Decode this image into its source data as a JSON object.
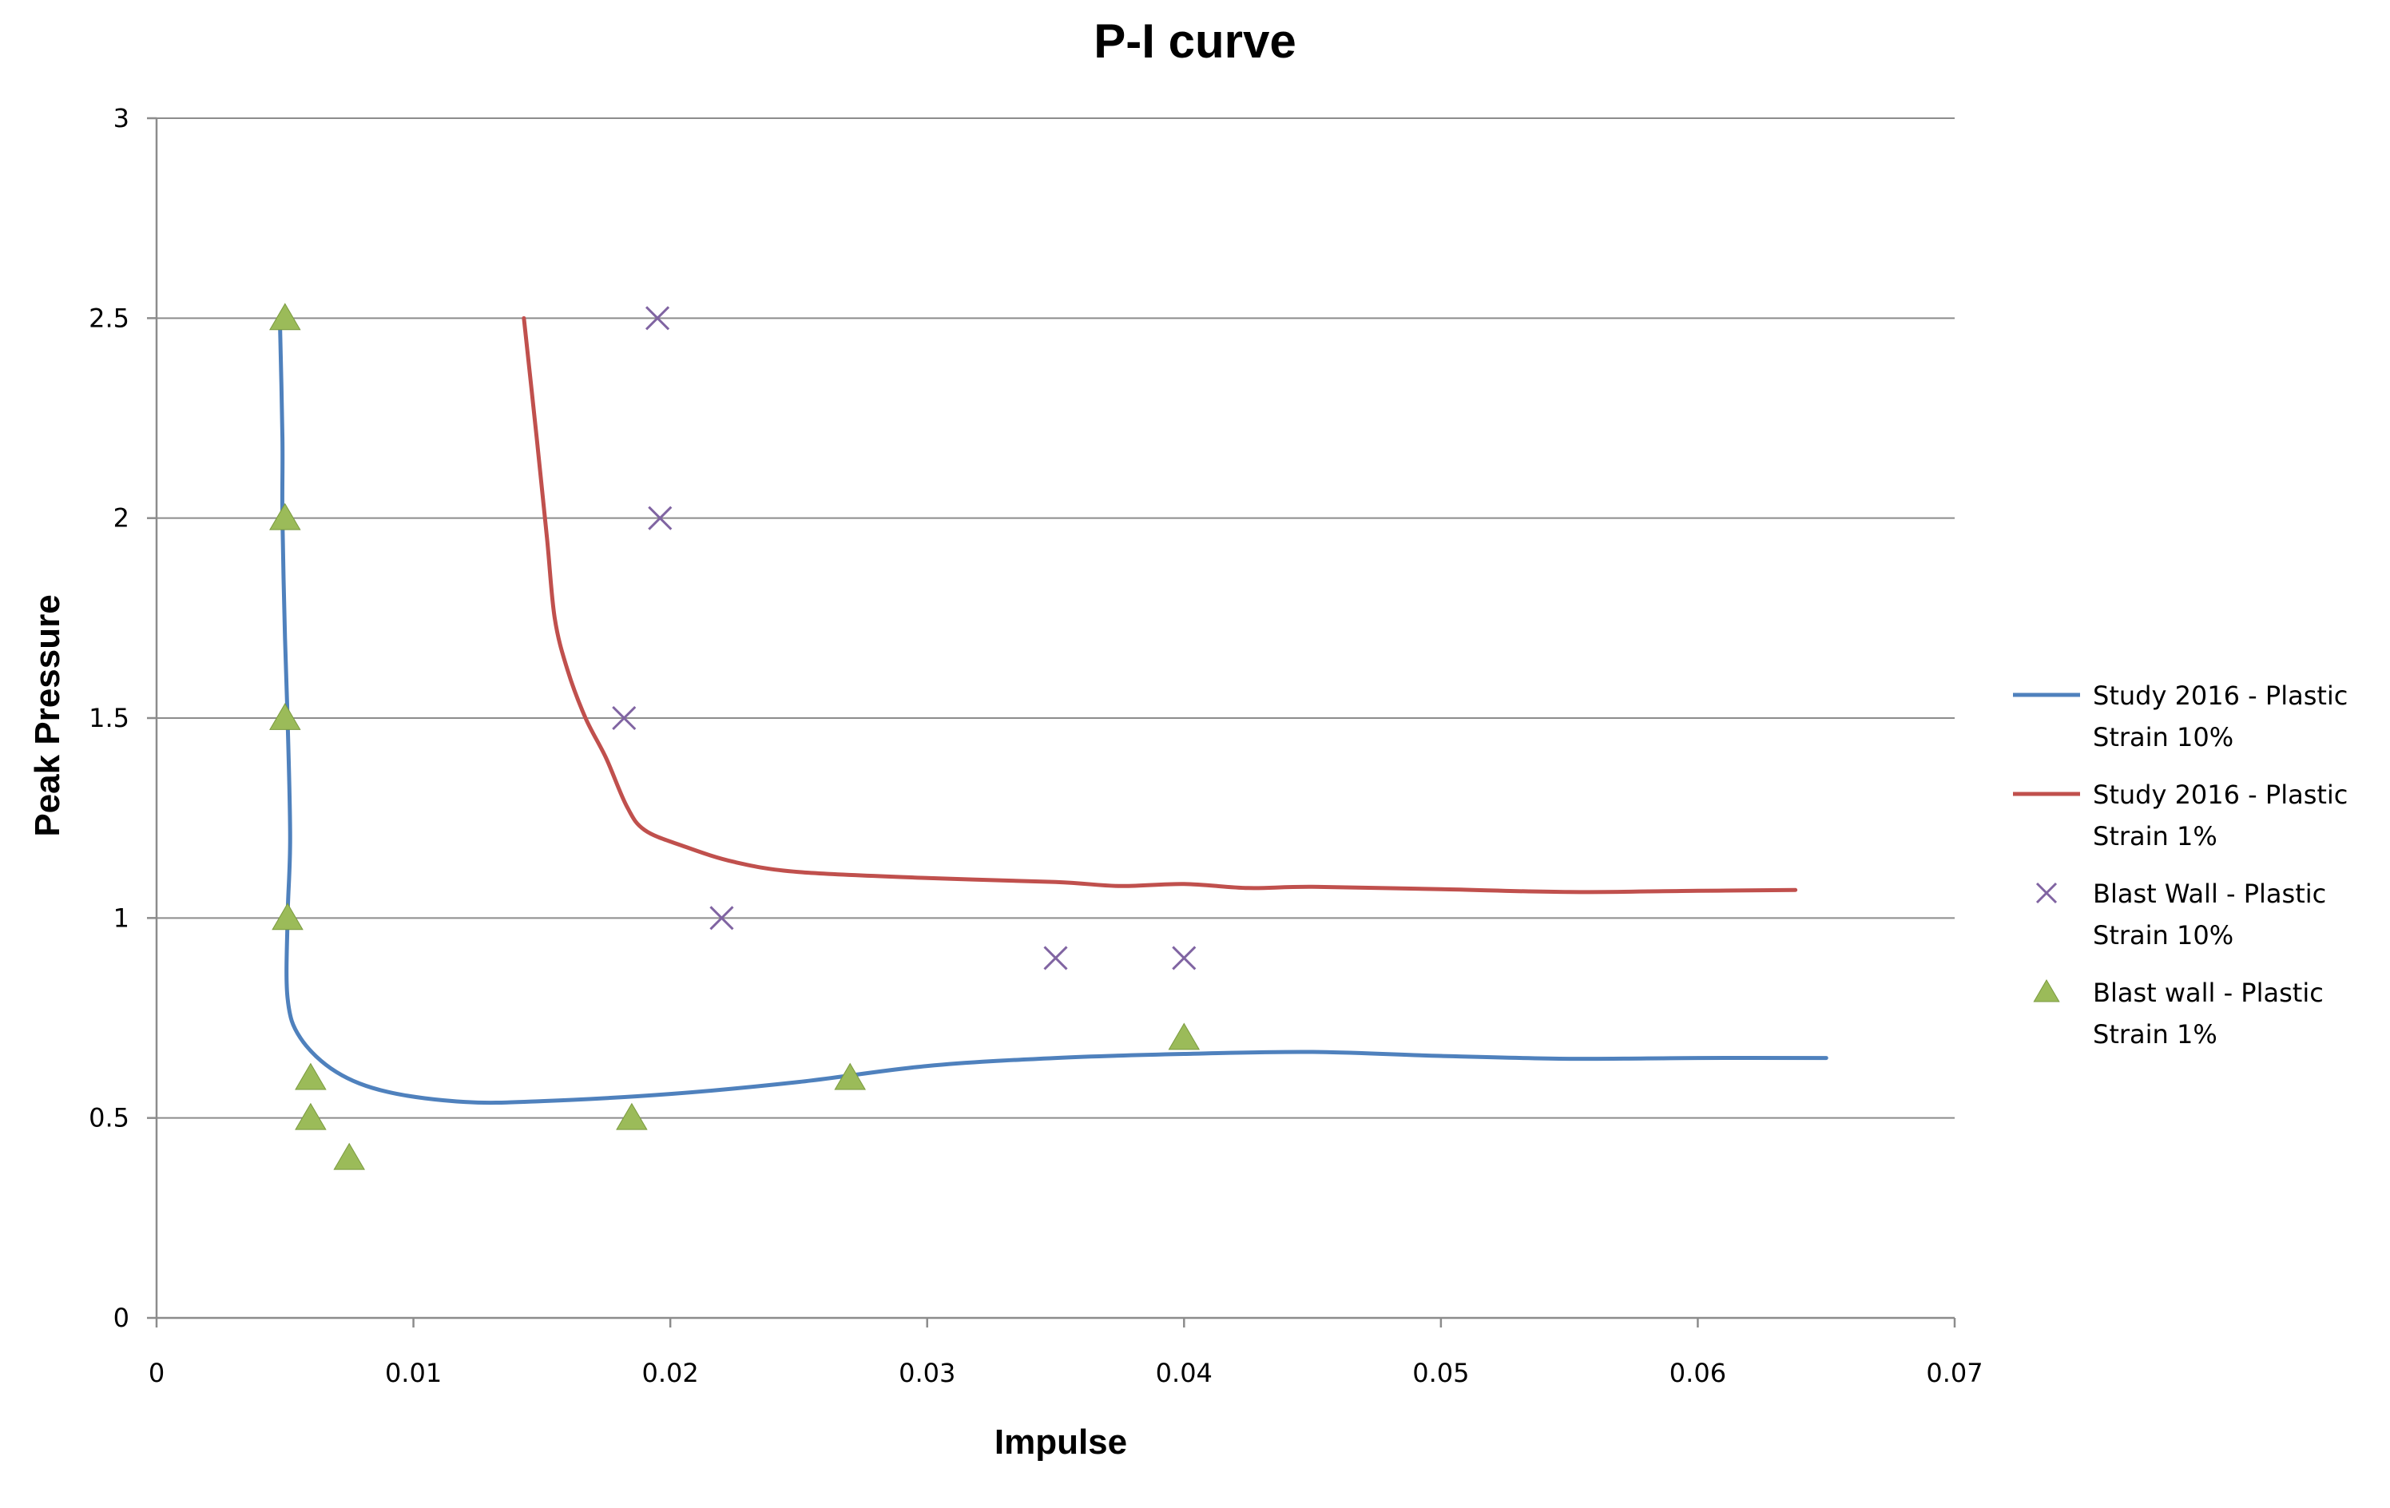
{
  "chart_data": {
    "type": "scatter",
    "title": "P-I curve",
    "xlabel": "Impulse",
    "ylabel": "Peak Pressure",
    "xlim": [
      0,
      0.07
    ],
    "ylim": [
      0,
      3
    ],
    "x_ticks": [
      0,
      0.01,
      0.02,
      0.03,
      0.04,
      0.05,
      0.06,
      0.07
    ],
    "x_tick_labels": [
      "0",
      "0.01",
      "0.02",
      "0.03",
      "0.04",
      "0.05",
      "0.06",
      "0.07"
    ],
    "y_ticks": [
      0,
      0.5,
      1,
      1.5,
      2,
      2.5,
      3
    ],
    "y_tick_labels": [
      "0",
      "0.5",
      "1",
      "1.5",
      "2",
      "2.5",
      "3"
    ],
    "grid": "horizontal",
    "legend_position": "right",
    "series": [
      {
        "name": "Study 2016 - Plastic Strain 10%",
        "legend_lines": [
          "Study 2016 - Plastic",
          "Strain 10%"
        ],
        "kind": "line",
        "color": "#4f81bd",
        "points": [
          [
            0.0048,
            2.5
          ],
          [
            0.0049,
            2.2
          ],
          [
            0.0049,
            2.0
          ],
          [
            0.005,
            1.7
          ],
          [
            0.0051,
            1.5
          ],
          [
            0.0052,
            1.2
          ],
          [
            0.0051,
            1.0
          ],
          [
            0.0051,
            0.8
          ],
          [
            0.0056,
            0.7
          ],
          [
            0.007,
            0.615
          ],
          [
            0.009,
            0.565
          ],
          [
            0.012,
            0.54
          ],
          [
            0.015,
            0.542
          ],
          [
            0.02,
            0.56
          ],
          [
            0.025,
            0.59
          ],
          [
            0.03,
            0.63
          ],
          [
            0.035,
            0.65
          ],
          [
            0.04,
            0.66
          ],
          [
            0.045,
            0.665
          ],
          [
            0.05,
            0.655
          ],
          [
            0.055,
            0.648
          ],
          [
            0.06,
            0.65
          ],
          [
            0.065,
            0.65
          ]
        ]
      },
      {
        "name": "Study 2016 - Plastic Strain 1%",
        "legend_lines": [
          "Study 2016 - Plastic",
          "Strain 1%"
        ],
        "kind": "line",
        "color": "#c0504d",
        "points": [
          [
            0.0143,
            2.5
          ],
          [
            0.0148,
            2.2
          ],
          [
            0.0152,
            1.95
          ],
          [
            0.0155,
            1.75
          ],
          [
            0.016,
            1.62
          ],
          [
            0.0167,
            1.5
          ],
          [
            0.0175,
            1.4
          ],
          [
            0.0183,
            1.28
          ],
          [
            0.019,
            1.22
          ],
          [
            0.0205,
            1.18
          ],
          [
            0.0225,
            1.14
          ],
          [
            0.025,
            1.115
          ],
          [
            0.03,
            1.1
          ],
          [
            0.035,
            1.09
          ],
          [
            0.0375,
            1.08
          ],
          [
            0.04,
            1.085
          ],
          [
            0.0425,
            1.075
          ],
          [
            0.045,
            1.078
          ],
          [
            0.05,
            1.072
          ],
          [
            0.055,
            1.065
          ],
          [
            0.06,
            1.068
          ],
          [
            0.0638,
            1.07
          ]
        ]
      },
      {
        "name": "Blast Wall - Plastic Strain 10%",
        "legend_lines": [
          "Blast Wall - Plastic",
          "Strain 10%"
        ],
        "kind": "marker-x",
        "color": "#8064a2",
        "points": [
          [
            0.0195,
            2.5
          ],
          [
            0.0196,
            2.0
          ],
          [
            0.0182,
            1.5
          ],
          [
            0.022,
            1.0
          ],
          [
            0.035,
            0.9
          ],
          [
            0.04,
            0.9
          ]
        ]
      },
      {
        "name": "Blast wall - Plastic Strain 1%",
        "legend_lines": [
          "Blast wall - Plastic",
          "Strain 1%"
        ],
        "kind": "marker-triangle",
        "color": "#9bbb59",
        "points": [
          [
            0.005,
            2.5
          ],
          [
            0.005,
            2.0
          ],
          [
            0.005,
            1.5
          ],
          [
            0.0051,
            1.0
          ],
          [
            0.006,
            0.6
          ],
          [
            0.006,
            0.5
          ],
          [
            0.0075,
            0.4
          ],
          [
            0.0185,
            0.5
          ],
          [
            0.027,
            0.6
          ],
          [
            0.04,
            0.7
          ]
        ]
      }
    ]
  }
}
